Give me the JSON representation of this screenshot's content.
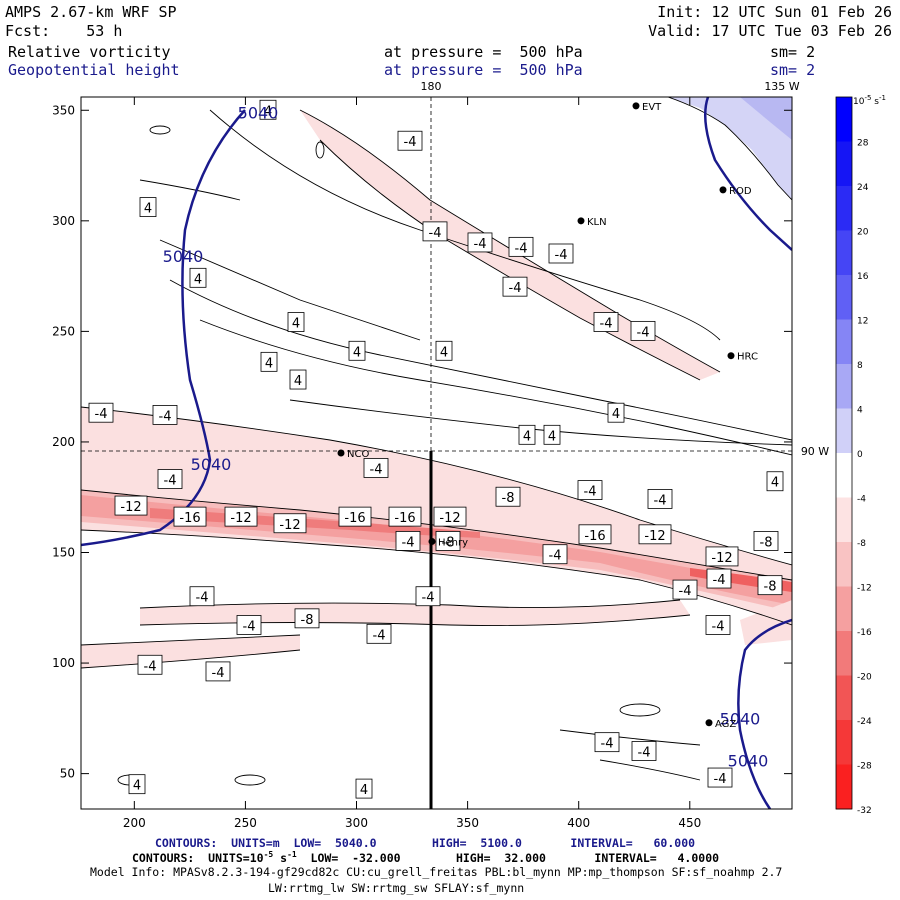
{
  "header": {
    "model": "AMPS 2.67-km WRF SP",
    "fcst_label": "Fcst:",
    "fcst_value": "53 h",
    "init": "Init: 12 UTC Sun 01 Feb 26",
    "valid": "Valid: 17 UTC Tue 03 Feb 26",
    "field1_name": "Relative vorticity",
    "field1_level": "at pressure =  500 hPa",
    "field1_sm": "sm= 2",
    "field2_name": "Geopotential height",
    "field2_level": "at pressure =  500 hPa",
    "field2_sm": "sm= 2"
  },
  "map_labels": {
    "lon_180": "180",
    "lon_135w": "135 W",
    "lon_90w": "90 W"
  },
  "stations": [
    "EVT",
    "ROD",
    "KLN",
    "HRC",
    "NCO",
    "Henry",
    "AGZ"
  ],
  "footer": {
    "line1": "CONTOURS:  UNITS=m  LOW=  5040.0        HIGH=  5100.0       INTERVAL=   60.000",
    "line2_pre": "CONTOURS:  UNITS=10",
    "line2_exp": "-5",
    "line2_post": " s",
    "line2_exp2": "-1",
    "line2_rest": "  LOW=  -32.000        HIGH=  32.000       INTERVAL=   4.0000",
    "line3": "Model Info: MPASv8.2.3-194-gf29cd82c CU:cu_grell_freitas PBL:bl_mynn MP:mp_thompson SF:sf_noahmp 2.7",
    "line4": "LW:rrtmg_lw SW:rrtmg_sw SFLAY:sf_mynn"
  },
  "chart_data": {
    "type": "heatmap",
    "title": "Relative vorticity / Geopotential height at 500 hPa",
    "xlim": [
      176,
      496
    ],
    "ylim": [
      34,
      356
    ],
    "x_ticks": [
      200,
      250,
      300,
      350,
      400,
      450
    ],
    "y_ticks": [
      50,
      100,
      150,
      200,
      250,
      300,
      350
    ],
    "colorbar": {
      "unit_base": "10",
      "unit_exp": "-5",
      "unit_s": " s",
      "unit_exp2": "-1",
      "levels": [
        32,
        28,
        24,
        20,
        16,
        12,
        8,
        4,
        0,
        -4,
        -8,
        -12,
        -16,
        -20,
        -24,
        -28,
        -32
      ],
      "colors": [
        "#0000ff",
        "#1515f5",
        "#2b2bf5",
        "#4545f5",
        "#6060f5",
        "#8585f5",
        "#a8a8f5",
        "#d0d0f8",
        "#ffffff",
        "#fde3e3",
        "#f9c3c3",
        "#f5a0a0",
        "#f27a7a",
        "#f25555",
        "#f53838",
        "#fa2020",
        "#ff0000"
      ]
    },
    "vorticity_labels": [
      {
        "x": 268,
        "y": 350,
        "t": "4"
      },
      {
        "x": 410,
        "y": 336,
        "t": "-4"
      },
      {
        "x": 148,
        "y": 306,
        "t": "4"
      },
      {
        "x": 435,
        "y": 295,
        "t": "-4"
      },
      {
        "x": 480,
        "y": 290,
        "t": "-4"
      },
      {
        "x": 521,
        "y": 288,
        "t": "-4"
      },
      {
        "x": 561,
        "y": 285,
        "t": "-4"
      },
      {
        "x": 515,
        "y": 270,
        "t": "-4"
      },
      {
        "x": 198,
        "y": 274,
        "t": "4"
      },
      {
        "x": 296,
        "y": 254,
        "t": "4"
      },
      {
        "x": 606,
        "y": 254,
        "t": "-4"
      },
      {
        "x": 643,
        "y": 250,
        "t": "-4"
      },
      {
        "x": 444,
        "y": 241,
        "t": "4"
      },
      {
        "x": 357,
        "y": 241,
        "t": "4"
      },
      {
        "x": 269,
        "y": 236,
        "t": "4"
      },
      {
        "x": 298,
        "y": 228,
        "t": "4"
      },
      {
        "x": 101,
        "y": 213,
        "t": "-4"
      },
      {
        "x": 165,
        "y": 212,
        "t": "-4"
      },
      {
        "x": 616,
        "y": 213,
        "t": "4"
      },
      {
        "x": 527,
        "y": 203,
        "t": "4"
      },
      {
        "x": 552,
        "y": 203,
        "t": "4"
      },
      {
        "x": 376,
        "y": 188,
        "t": "-4"
      },
      {
        "x": 170,
        "y": 183,
        "t": "-4"
      },
      {
        "x": 775,
        "y": 182,
        "t": "4"
      },
      {
        "x": 590,
        "y": 178,
        "t": "-4"
      },
      {
        "x": 508,
        "y": 175,
        "t": "-8"
      },
      {
        "x": 660,
        "y": 174,
        "t": "-4"
      },
      {
        "x": 131,
        "y": 171,
        "t": "-12"
      },
      {
        "x": 190,
        "y": 166,
        "t": "-16"
      },
      {
        "x": 241,
        "y": 166,
        "t": "-12"
      },
      {
        "x": 290,
        "y": 163,
        "t": "-12"
      },
      {
        "x": 355,
        "y": 166,
        "t": "-16"
      },
      {
        "x": 405,
        "y": 166,
        "t": "-16"
      },
      {
        "x": 450,
        "y": 166,
        "t": "-12"
      },
      {
        "x": 408,
        "y": 155,
        "t": "-4"
      },
      {
        "x": 448,
        "y": 155,
        "t": "-8"
      },
      {
        "x": 595,
        "y": 158,
        "t": "-16"
      },
      {
        "x": 655,
        "y": 158,
        "t": "-12"
      },
      {
        "x": 766,
        "y": 155,
        "t": "-8"
      },
      {
        "x": 555,
        "y": 149,
        "t": "-4"
      },
      {
        "x": 722,
        "y": 148,
        "t": "-12"
      },
      {
        "x": 719,
        "y": 138,
        "t": "-4"
      },
      {
        "x": 770,
        "y": 135,
        "t": "-8"
      },
      {
        "x": 685,
        "y": 133,
        "t": "-4"
      },
      {
        "x": 202,
        "y": 130,
        "t": "-4"
      },
      {
        "x": 428,
        "y": 130,
        "t": "-4"
      },
      {
        "x": 307,
        "y": 120,
        "t": "-8"
      },
      {
        "x": 249,
        "y": 117,
        "t": "-4"
      },
      {
        "x": 718,
        "y": 117,
        "t": "-4"
      },
      {
        "x": 379,
        "y": 113,
        "t": "-4"
      },
      {
        "x": 150,
        "y": 99,
        "t": "-4"
      },
      {
        "x": 218,
        "y": 96,
        "t": "-4"
      },
      {
        "x": 607,
        "y": 64,
        "t": "-4"
      },
      {
        "x": 644,
        "y": 60,
        "t": "-4"
      },
      {
        "x": 137,
        "y": 45,
        "t": "4"
      },
      {
        "x": 720,
        "y": 48,
        "t": "-4"
      },
      {
        "x": 364,
        "y": 43,
        "t": "4"
      }
    ],
    "height_labels": [
      {
        "x": 258,
        "y": 349,
        "t": "5040"
      },
      {
        "x": 183,
        "y": 284,
        "t": "5040"
      },
      {
        "x": 211,
        "y": 190,
        "t": "5040"
      },
      {
        "x": 740,
        "y": 75,
        "t": "5040"
      },
      {
        "x": 748,
        "y": 56,
        "t": "5040"
      }
    ],
    "stations": [
      {
        "x": 636,
        "y": 352,
        "name": "EVT"
      },
      {
        "x": 723,
        "y": 314,
        "name": "ROD"
      },
      {
        "x": 581,
        "y": 300,
        "name": "KLN"
      },
      {
        "x": 731,
        "y": 239,
        "name": "HRC"
      },
      {
        "x": 341,
        "y": 195,
        "name": "NCO"
      },
      {
        "x": 432,
        "y": 155,
        "name": "Henry"
      },
      {
        "x": 709,
        "y": 73,
        "name": "AGZ"
      }
    ]
  }
}
